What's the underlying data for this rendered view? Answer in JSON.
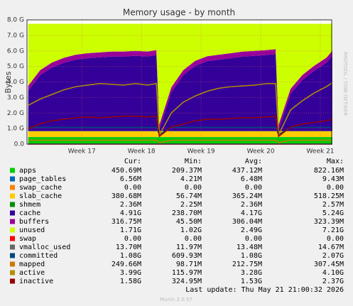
{
  "chart_data": {
    "type": "area",
    "title": "Memory usage - by month",
    "ylabel": "Bytes",
    "side_note": "RRDTOOL / TOBI OETIKER",
    "x": [
      16.1,
      16.3,
      16.5,
      16.7,
      16.9,
      17.1,
      17.3,
      17.5,
      17.7,
      17.9,
      18.1,
      18.25,
      18.3,
      18.5,
      18.7,
      18.9,
      19.1,
      19.3,
      19.5,
      19.7,
      19.9,
      20.1,
      20.25,
      20.3,
      20.5,
      20.7,
      20.9,
      21.1,
      21.2
    ],
    "xlim": [
      16.08,
      21.19
    ],
    "xticks": [
      {
        "value": 17,
        "label": "Week 17"
      },
      {
        "value": 18,
        "label": "Week 18"
      },
      {
        "value": 19,
        "label": "Week 19"
      },
      {
        "value": 20,
        "label": "Week 20"
      },
      {
        "value": 21,
        "label": "Week 21"
      }
    ],
    "ylim": [
      0,
      8
    ],
    "yticks": [
      {
        "value": 0,
        "label": "0.0"
      },
      {
        "value": 1,
        "label": "1.0 G"
      },
      {
        "value": 2,
        "label": "2.0 G"
      },
      {
        "value": 3,
        "label": "3.0 G"
      },
      {
        "value": 4,
        "label": "4.0 G"
      },
      {
        "value": 5,
        "label": "5.0 G"
      },
      {
        "value": 6,
        "label": "6.0 G"
      },
      {
        "value": 7,
        "label": "7.0 G"
      },
      {
        "value": 8,
        "label": "8.0 G"
      }
    ],
    "grid": true,
    "stat_headers": [
      "Cur:",
      "Min:",
      "Avg:",
      "Max:"
    ],
    "series": [
      {
        "name": "apps",
        "color": "#00cc00",
        "stacked": true,
        "stats": [
          "450.69M",
          "209.37M",
          "437.12M",
          "822.16M"
        ],
        "values": [
          0.45,
          0.45,
          0.45,
          0.45,
          0.45,
          0.45,
          0.45,
          0.45,
          0.45,
          0.45,
          0.45,
          0.45,
          0.45,
          0.45,
          0.45,
          0.45,
          0.45,
          0.45,
          0.45,
          0.45,
          0.45,
          0.45,
          0.45,
          0.45,
          0.45,
          0.45,
          0.45,
          0.45,
          0.45
        ]
      },
      {
        "name": "page_tables",
        "color": "#0066b3",
        "stacked": true,
        "stats": [
          "6.56M",
          "4.21M",
          "6.48M",
          "9.43M"
        ],
        "values": [
          0.006,
          0.006,
          0.006,
          0.006,
          0.006,
          0.006,
          0.006,
          0.006,
          0.006,
          0.006,
          0.006,
          0.006,
          0.006,
          0.006,
          0.006,
          0.006,
          0.006,
          0.006,
          0.006,
          0.006,
          0.006,
          0.006,
          0.006,
          0.006,
          0.006,
          0.006,
          0.006,
          0.006,
          0.006
        ]
      },
      {
        "name": "swap_cache",
        "color": "#ff8000",
        "stacked": true,
        "stats": [
          "0.00",
          "0.00",
          "0.00",
          "0.00"
        ],
        "values": [
          0,
          0,
          0,
          0,
          0,
          0,
          0,
          0,
          0,
          0,
          0,
          0,
          0,
          0,
          0,
          0,
          0,
          0,
          0,
          0,
          0,
          0,
          0,
          0,
          0,
          0,
          0,
          0,
          0
        ]
      },
      {
        "name": "slab_cache",
        "color": "#ffcc00",
        "stacked": true,
        "stats": [
          "380.68M",
          "56.74M",
          "365.24M",
          "518.25M"
        ],
        "values": [
          0.38,
          0.38,
          0.38,
          0.38,
          0.38,
          0.38,
          0.38,
          0.38,
          0.38,
          0.38,
          0.38,
          0.38,
          0.38,
          0.38,
          0.38,
          0.38,
          0.38,
          0.38,
          0.38,
          0.38,
          0.38,
          0.38,
          0.38,
          0.38,
          0.38,
          0.38,
          0.38,
          0.38,
          0.38
        ]
      },
      {
        "name": "shmem",
        "color": "#008f00",
        "stacked": true,
        "stats": [
          "2.36M",
          "2.25M",
          "2.36M",
          "2.57M"
        ],
        "values": [
          0.002,
          0.002,
          0.002,
          0.002,
          0.002,
          0.002,
          0.002,
          0.002,
          0.002,
          0.002,
          0.002,
          0.002,
          0.002,
          0.002,
          0.002,
          0.002,
          0.002,
          0.002,
          0.002,
          0.002,
          0.002,
          0.002,
          0.002,
          0.002,
          0.002,
          0.002,
          0.002,
          0.002,
          0.002
        ]
      },
      {
        "name": "cache",
        "color": "#330099",
        "stacked": true,
        "stats": [
          "4.91G",
          "238.70M",
          "4.17G",
          "5.24G"
        ],
        "values": [
          2.6,
          3.6,
          4.1,
          4.4,
          4.6,
          4.7,
          4.75,
          4.8,
          4.8,
          4.85,
          4.8,
          4.9,
          0.1,
          2.5,
          3.6,
          4.2,
          4.5,
          4.6,
          4.7,
          4.8,
          4.85,
          4.9,
          4.95,
          0.1,
          2.4,
          3.3,
          3.9,
          4.4,
          4.85
        ]
      },
      {
        "name": "buffers",
        "color": "#990099",
        "stacked": true,
        "stats": [
          "316.75M",
          "45.50M",
          "306.04M",
          "323.39M"
        ],
        "values": [
          0.32,
          0.32,
          0.32,
          0.32,
          0.32,
          0.32,
          0.32,
          0.32,
          0.32,
          0.32,
          0.32,
          0.32,
          0.32,
          0.32,
          0.32,
          0.32,
          0.32,
          0.32,
          0.32,
          0.32,
          0.32,
          0.32,
          0.32,
          0.32,
          0.32,
          0.32,
          0.32,
          0.32,
          0.32
        ]
      },
      {
        "name": "unused",
        "color": "#ccff00",
        "stacked": true,
        "stats": [
          "1.71G",
          "1.02G",
          "2.49G",
          "7.21G"
        ],
        "values": [
          3.992,
          2.992,
          2.492,
          2.192,
          1.992,
          1.892,
          1.842,
          1.792,
          1.792,
          1.742,
          1.792,
          1.692,
          6.492,
          4.092,
          2.992,
          2.392,
          2.092,
          1.992,
          1.892,
          1.792,
          1.742,
          1.692,
          1.642,
          6.492,
          4.192,
          3.292,
          2.692,
          2.192,
          1.742
        ]
      },
      {
        "name": "swap",
        "color": "#ff0000",
        "stats": [
          "0.00",
          "0.00",
          "0.00",
          "0.00"
        ],
        "values": [
          0,
          0,
          0,
          0,
          0,
          0,
          0,
          0,
          0,
          0,
          0,
          0,
          0,
          0,
          0,
          0,
          0,
          0,
          0,
          0,
          0,
          0,
          0,
          0,
          0,
          0,
          0,
          0,
          0
        ]
      },
      {
        "name": "vmalloc_used",
        "color": "#666666",
        "stats": [
          "13.70M",
          "11.97M",
          "13.48M",
          "14.67M"
        ],
        "values": [
          0.014,
          0.014,
          0.014,
          0.014,
          0.014,
          0.014,
          0.014,
          0.014,
          0.014,
          0.014,
          0.014,
          0.014,
          0.014,
          0.014,
          0.014,
          0.014,
          0.014,
          0.014,
          0.014,
          0.014,
          0.014,
          0.014,
          0.014,
          0.014,
          0.014,
          0.014,
          0.014,
          0.014,
          0.014
        ]
      },
      {
        "name": "committed",
        "color": "#00487d",
        "stats": [
          "1.08G",
          "609.93M",
          "1.08G",
          "2.07G"
        ],
        "values": [
          1.08,
          1.08,
          1.08,
          1.08,
          1.08,
          1.08,
          1.08,
          1.08,
          1.08,
          1.08,
          1.08,
          1.08,
          0.61,
          1.08,
          1.08,
          1.08,
          1.08,
          1.08,
          1.08,
          1.08,
          1.08,
          1.08,
          1.08,
          0.61,
          1.08,
          1.08,
          1.08,
          1.08,
          1.08
        ]
      },
      {
        "name": "mapped",
        "color": "#cc7a00",
        "stats": [
          "249.66M",
          "98.71M",
          "212.75M",
          "307.45M"
        ],
        "values": [
          0.25,
          0.25,
          0.25,
          0.25,
          0.25,
          0.25,
          0.25,
          0.25,
          0.25,
          0.25,
          0.25,
          0.25,
          0.1,
          0.25,
          0.25,
          0.25,
          0.25,
          0.25,
          0.25,
          0.25,
          0.25,
          0.25,
          0.25,
          0.1,
          0.25,
          0.25,
          0.25,
          0.25,
          0.25
        ]
      },
      {
        "name": "active",
        "color": "#b38f00",
        "stats": [
          "3.99G",
          "115.97M",
          "3.28G",
          "4.10G"
        ],
        "values": [
          2.5,
          2.9,
          3.2,
          3.5,
          3.7,
          3.8,
          3.9,
          3.85,
          3.8,
          3.9,
          3.8,
          3.9,
          0.6,
          2.0,
          2.7,
          3.1,
          3.4,
          3.6,
          3.7,
          3.75,
          3.8,
          3.9,
          3.9,
          0.6,
          2.2,
          2.8,
          3.3,
          3.7,
          3.95
        ]
      },
      {
        "name": "inactive",
        "color": "#990000",
        "stats": [
          "1.58G",
          "324.95M",
          "1.53G",
          "2.37G"
        ],
        "values": [
          1.0,
          1.3,
          1.5,
          1.6,
          1.7,
          1.75,
          1.7,
          1.75,
          1.8,
          1.8,
          1.75,
          1.8,
          0.5,
          1.1,
          1.3,
          1.5,
          1.6,
          1.6,
          1.65,
          1.7,
          1.7,
          1.75,
          1.8,
          0.5,
          1.1,
          1.3,
          1.4,
          1.5,
          1.6
        ]
      }
    ],
    "last_update": "Last update: Thu May 21 21:00:32 2026",
    "footer": "Munin 2.0.57"
  }
}
